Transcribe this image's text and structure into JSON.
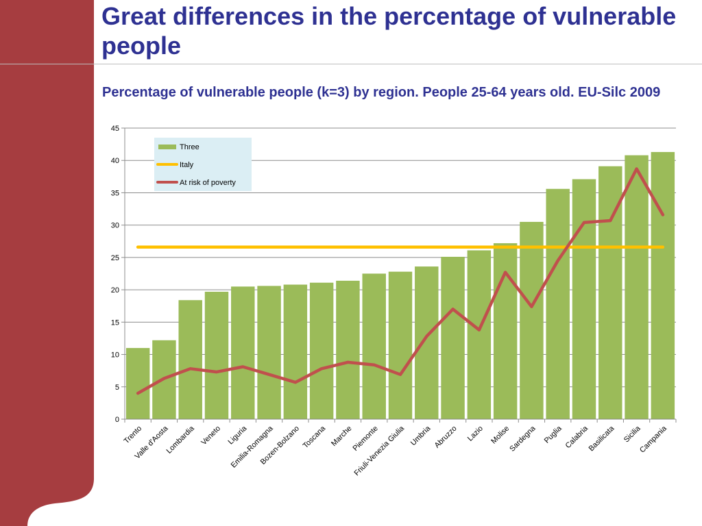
{
  "slide": {
    "title": "Great differences in the percentage of vulnerable people",
    "brand_color": "#a63d40",
    "title_color": "#2e3192"
  },
  "chart_data": {
    "type": "bar",
    "title": "Percentage of vulnerable people (k=3) by region. People 25-64 years old. EU-Silc 2009",
    "xlabel": "",
    "ylabel": "",
    "ylim": [
      0,
      45
    ],
    "yticks": [
      0,
      5,
      10,
      15,
      20,
      25,
      30,
      35,
      40,
      45
    ],
    "grid": true,
    "legend_position": "top-left",
    "categories": [
      "Trento",
      "Valle d'Aosta",
      "Lombardia",
      "Veneto",
      "Liguria",
      "Emilia-Romagna",
      "Bozen-Bolzano",
      "Toscana",
      "Marche",
      "Piemonte",
      "Friuli-Venezia Giulia",
      "Umbria",
      "Abruzzo",
      "Lazio",
      "Molise",
      "Sardegna",
      "Puglia",
      "Calabria",
      "Basilicata",
      "Sicilia",
      "Campania"
    ],
    "series": [
      {
        "name": "Three",
        "kind": "bar",
        "color": "#9bbb59",
        "values": [
          11.0,
          12.2,
          18.4,
          19.7,
          20.5,
          20.6,
          20.8,
          21.1,
          21.4,
          22.5,
          22.8,
          23.6,
          25.1,
          26.1,
          27.2,
          30.5,
          35.6,
          37.1,
          39.1,
          40.8,
          41.3
        ]
      },
      {
        "name": "Italy",
        "kind": "line",
        "color": "#ffc000",
        "values": [
          26.6,
          26.6,
          26.6,
          26.6,
          26.6,
          26.6,
          26.6,
          26.6,
          26.6,
          26.6,
          26.6,
          26.6,
          26.6,
          26.6,
          26.6,
          26.6,
          26.6,
          26.6,
          26.6,
          26.6,
          26.6
        ]
      },
      {
        "name": "At risk of poverty",
        "kind": "line",
        "color": "#c0504d",
        "values": [
          4.0,
          6.3,
          7.8,
          7.3,
          8.1,
          6.9,
          5.7,
          7.8,
          8.8,
          8.4,
          6.9,
          12.8,
          17.0,
          13.8,
          22.7,
          17.4,
          24.5,
          30.4,
          30.7,
          38.7,
          31.6
        ]
      }
    ]
  }
}
